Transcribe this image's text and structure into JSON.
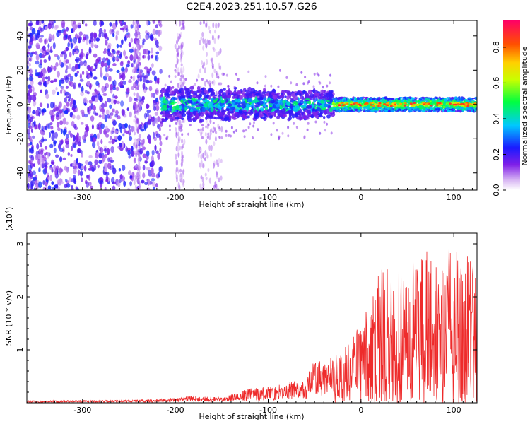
{
  "title": "C2E4.2023.251.10.57.G26",
  "chart_data": [
    {
      "type": "heatmap",
      "xlabel": "Height of straight line (km)",
      "ylabel": "Frequency (Hz)",
      "xlim": [
        -360,
        125
      ],
      "ylim": [
        -50,
        49
      ],
      "x_ticks": [
        -300,
        -200,
        -100,
        0,
        100
      ],
      "y_ticks": [
        -40,
        -20,
        0,
        20,
        40
      ],
      "colorbar": {
        "label": "Normalized spectral amplitude",
        "range": [
          0,
          0.95
        ],
        "ticks": [
          "0.0",
          "0.2",
          "0.4",
          "0.6",
          "0.8"
        ],
        "tick_values": [
          0,
          0.2,
          0.4,
          0.6,
          0.8
        ],
        "colormap": "rainbow (violet to red)"
      },
      "regions": [
        {
          "x": [
            -360,
            -215
          ],
          "description": "broadband scattered noise",
          "freq_range": [
            -50,
            49
          ],
          "amplitude": [
            0.1,
            0.25
          ]
        },
        {
          "x": [
            -215,
            -30
          ],
          "description": "signal band with noise",
          "freq_range": [
            -10,
            10
          ],
          "amplitude": [
            0.2,
            0.5
          ]
        },
        {
          "x": [
            -30,
            125
          ],
          "description": "narrow coherent signal",
          "freq_range": [
            -4,
            4
          ],
          "amplitude": [
            0.3,
            0.85
          ]
        }
      ]
    },
    {
      "type": "line",
      "xlabel": "Height of straight line (km)",
      "ylabel": "SNR (10 * v/v)",
      "scale_note": "(x10",
      "scale_exp": "4",
      "scale_close": ")",
      "xlim": [
        -360,
        125
      ],
      "ylim": [
        0,
        3.2
      ],
      "x_ticks": [
        -300,
        -200,
        -100,
        0,
        100
      ],
      "y_ticks": [
        1,
        2,
        3
      ],
      "series": [
        {
          "color": "#ee2b2b",
          "envelope": [
            {
              "x": -360,
              "y": 0.04
            },
            {
              "x": -250,
              "y": 0.05
            },
            {
              "x": -200,
              "y": 0.09
            },
            {
              "x": -180,
              "y": 0.14
            },
            {
              "x": -150,
              "y": 0.1
            },
            {
              "x": -120,
              "y": 0.28
            },
            {
              "x": -100,
              "y": 0.3
            },
            {
              "x": -60,
              "y": 0.45
            },
            {
              "x": -50,
              "y": 0.8
            },
            {
              "x": -30,
              "y": 0.85
            },
            {
              "x": -10,
              "y": 1.2
            },
            {
              "x": 0,
              "y": 1.6
            },
            {
              "x": 20,
              "y": 2.5
            },
            {
              "x": 40,
              "y": 2.6
            },
            {
              "x": 60,
              "y": 2.85
            },
            {
              "x": 80,
              "y": 2.95
            },
            {
              "x": 100,
              "y": 2.9
            },
            {
              "x": 125,
              "y": 2.8
            }
          ]
        }
      ]
    }
  ]
}
